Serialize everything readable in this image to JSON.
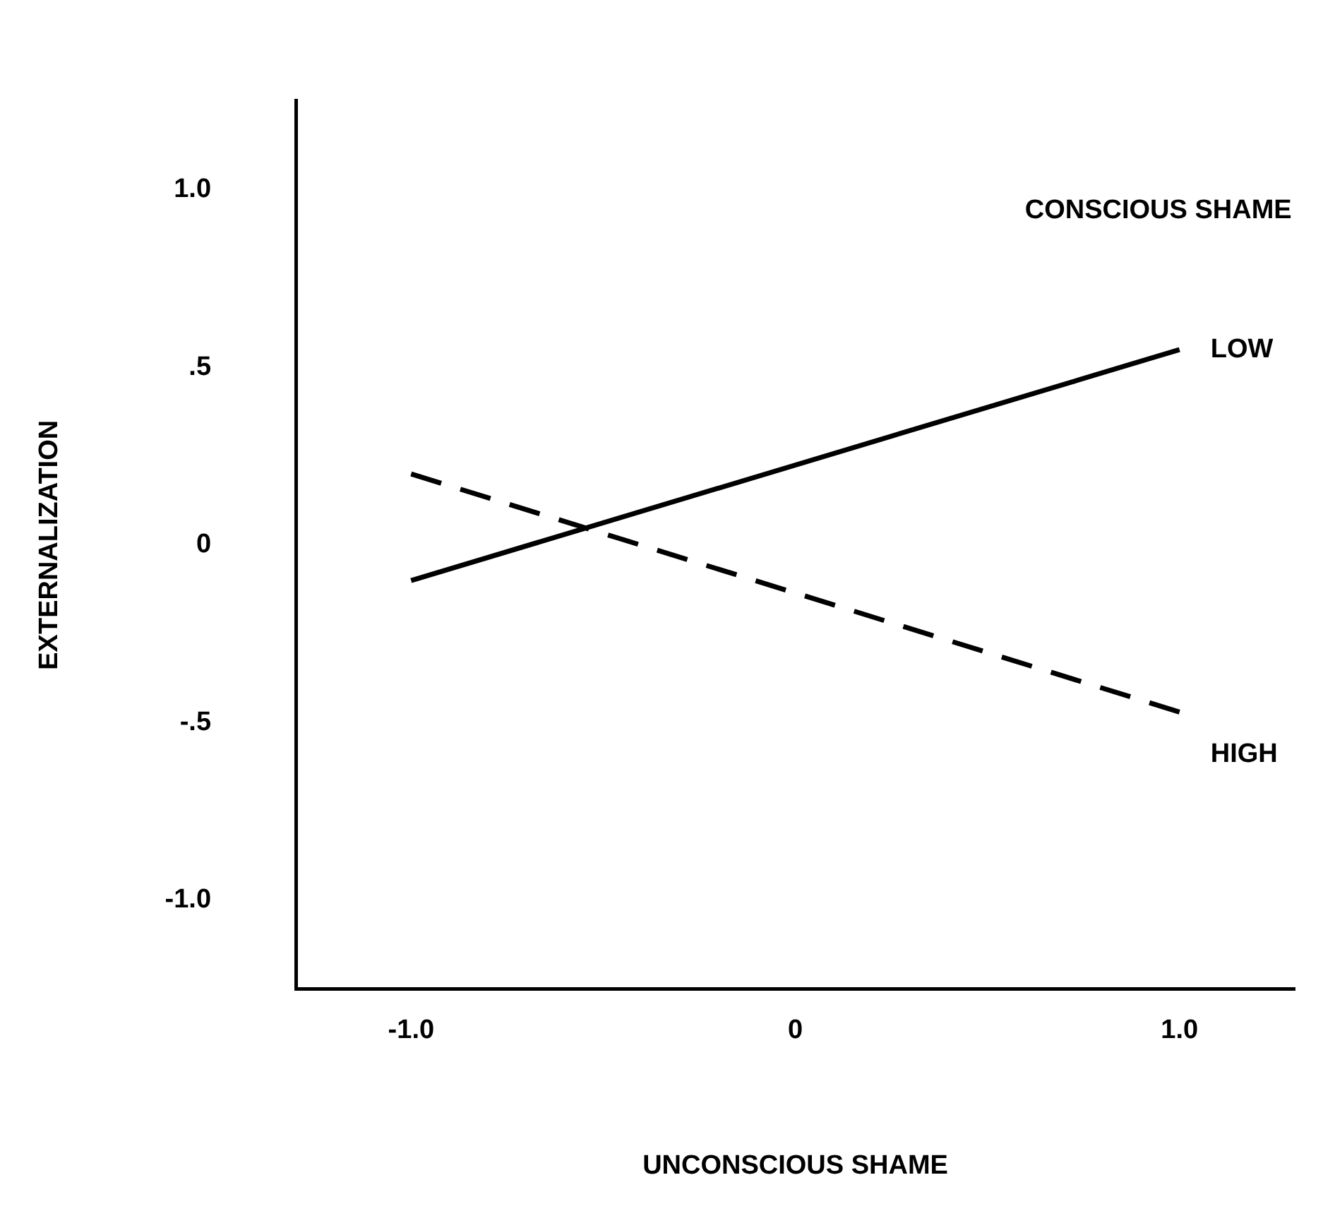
{
  "chart_data": {
    "type": "line",
    "xlabel": "UNCONSCIOUS SHAME",
    "ylabel": "EXTERNALIZATION",
    "legend_title": "CONSCIOUS SHAME",
    "x": [
      -1.0,
      1.0
    ],
    "series": [
      {
        "name": "LOW",
        "color": "#000000",
        "values": [
          -0.1,
          0.55
        ],
        "line_style": "solid"
      },
      {
        "name": "HIGH",
        "color": "#000000",
        "values": [
          0.2,
          -0.47
        ],
        "line_style": "dashed"
      }
    ],
    "xlim": [
      -1.3,
      1.3
    ],
    "ylim": [
      -1.25,
      1.25
    ],
    "xticks": [
      {
        "value": -1,
        "label": "-1.0"
      },
      0,
      {
        "value": 1,
        "label": "1.0"
      }
    ],
    "yticks": [
      {
        "value": -1,
        "label": "-1.0"
      },
      {
        "value": -0.5,
        "label": "-.5"
      },
      0,
      {
        "value": 0.5,
        "label": ".5"
      },
      {
        "value": 1,
        "label": "1.0"
      }
    ],
    "grid": false,
    "marker": "none"
  }
}
